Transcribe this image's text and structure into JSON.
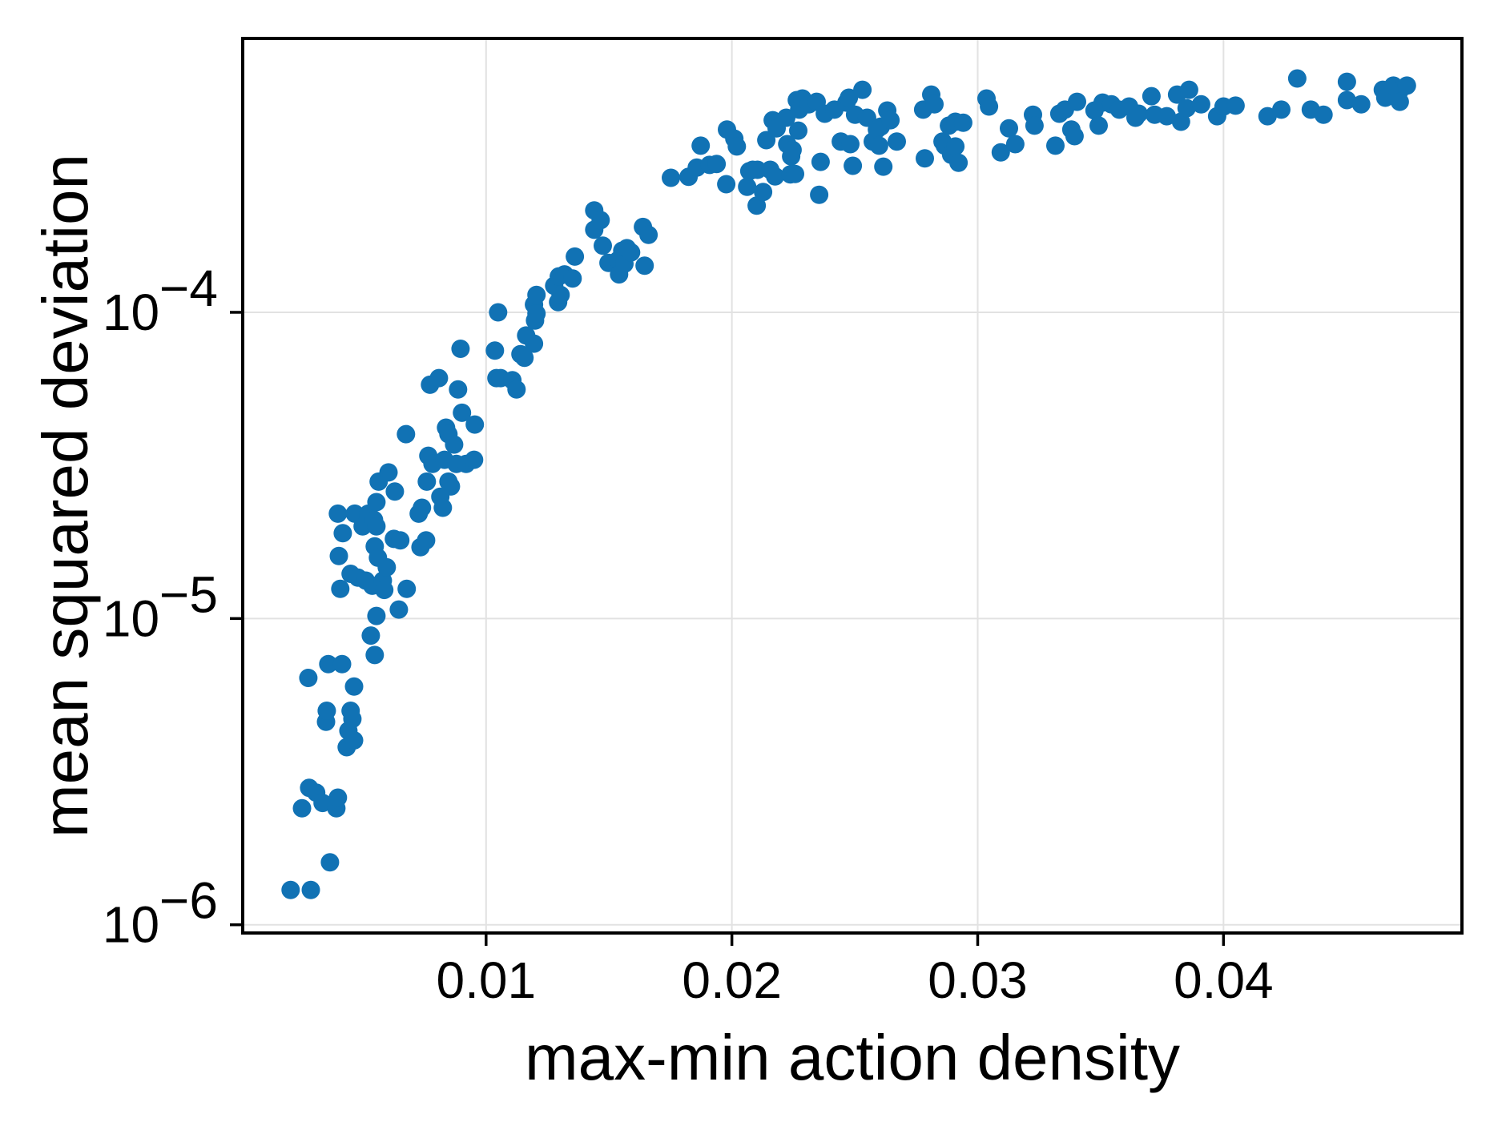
{
  "figure": {
    "background": "#ffffff",
    "spine_color": "#000000",
    "grid_color": "#e2e2e2"
  },
  "chart_data": {
    "type": "scatter",
    "title": "",
    "xlabel": "max-min action density",
    "ylabel": "mean squared deviation",
    "x_scale": "linear",
    "y_scale": "log",
    "xlim": [
      0.0001,
      0.0497
    ],
    "ylim": [
      9.4e-07,
      0.000784
    ],
    "grid": true,
    "legend": "none",
    "marker": {
      "color": "#1172b4",
      "radius_px": 11.5
    },
    "xticks": [
      {
        "value": 0.01,
        "label": "0.01"
      },
      {
        "value": 0.02,
        "label": "0.02"
      },
      {
        "value": 0.03,
        "label": "0.03"
      },
      {
        "value": 0.04,
        "label": "0.04"
      }
    ],
    "yticks": [
      {
        "value": 0.0001,
        "base": "10",
        "exp": "−4"
      },
      {
        "value": 1e-05,
        "base": "10",
        "exp": "−5"
      },
      {
        "value": 1e-06,
        "base": "10",
        "exp": "−6"
      }
    ],
    "points": [
      [
        0.00205,
        1.3e-06
      ],
      [
        0.00251,
        2.4e-06
      ],
      [
        0.00277,
        6.4e-06
      ],
      [
        0.0028,
        2.8e-06
      ],
      [
        0.00287,
        1.3e-06
      ],
      [
        0.00309,
        2.7e-06
      ],
      [
        0.00335,
        2.5e-06
      ],
      [
        0.00349,
        4.6e-06
      ],
      [
        0.00352,
        5e-06
      ],
      [
        0.00358,
        7.1e-06
      ],
      [
        0.00365,
        1.6e-06
      ],
      [
        0.00391,
        2.4e-06
      ],
      [
        0.00397,
        2.6e-06
      ],
      [
        0.00397,
        2.2e-05
      ],
      [
        0.00401,
        1.6e-05
      ],
      [
        0.00407,
        1.25e-05
      ],
      [
        0.00414,
        7.1e-06
      ],
      [
        0.00417,
        1.9e-05
      ],
      [
        0.00433,
        3.8e-06
      ],
      [
        0.0044,
        4.3e-06
      ],
      [
        0.00449,
        1.4e-05
      ],
      [
        0.00449,
        5e-06
      ],
      [
        0.00456,
        4.7e-06
      ],
      [
        0.00463,
        6e-06
      ],
      [
        0.00463,
        4e-06
      ],
      [
        0.00466,
        2.2e-05
      ],
      [
        0.00479,
        1.36e-05
      ],
      [
        0.00498,
        2e-05
      ],
      [
        0.00511,
        1.33e-05
      ],
      [
        0.00521,
        2.2e-05
      ],
      [
        0.00531,
        8.8e-06
      ],
      [
        0.00537,
        1.28e-05
      ],
      [
        0.00544,
        2.1e-05
      ],
      [
        0.00547,
        1.72e-05
      ],
      [
        0.00547,
        7.6e-06
      ],
      [
        0.00554,
        2.4e-05
      ],
      [
        0.00554,
        2e-05
      ],
      [
        0.00554,
        1.02e-05
      ],
      [
        0.0056,
        1.58e-05
      ],
      [
        0.00563,
        2.8e-05
      ],
      [
        0.0058,
        1.33e-05
      ],
      [
        0.00586,
        1.24e-05
      ],
      [
        0.00596,
        1.47e-05
      ],
      [
        0.00603,
        3e-05
      ],
      [
        0.00625,
        1.82e-05
      ],
      [
        0.00629,
        2.6e-05
      ],
      [
        0.00645,
        1.07e-05
      ],
      [
        0.00651,
        1.8e-05
      ],
      [
        0.00674,
        4e-05
      ],
      [
        0.00677,
        1.25e-05
      ],
      [
        0.00726,
        2.2e-05
      ],
      [
        0.00733,
        1.71e-05
      ],
      [
        0.00739,
        2.3e-05
      ],
      [
        0.00756,
        1.8e-05
      ],
      [
        0.00759,
        2.8e-05
      ],
      [
        0.00765,
        3.4e-05
      ],
      [
        0.00772,
        5.8e-05
      ],
      [
        0.00782,
        3.2e-05
      ],
      [
        0.00808,
        6.1e-05
      ],
      [
        0.00814,
        2.5e-05
      ],
      [
        0.00824,
        2.3e-05
      ],
      [
        0.00831,
        3.3e-05
      ],
      [
        0.00837,
        4.2e-05
      ],
      [
        0.00847,
        4e-05
      ],
      [
        0.00847,
        2.8e-05
      ],
      [
        0.00857,
        2.7e-05
      ],
      [
        0.0087,
        3.7e-05
      ],
      [
        0.00879,
        3.2e-05
      ],
      [
        0.00886,
        5.6e-05
      ],
      [
        0.00896,
        7.6e-05
      ],
      [
        0.00902,
        4.7e-05
      ],
      [
        0.00919,
        3.2e-05
      ],
      [
        0.00951,
        3.3e-05
      ],
      [
        0.00954,
        4.3e-05
      ],
      [
        0.01036,
        7.5e-05
      ],
      [
        0.01042,
        6.1e-05
      ],
      [
        0.01049,
        0.0001
      ],
      [
        0.01059,
        6.1e-05
      ],
      [
        0.01107,
        6e-05
      ],
      [
        0.01124,
        5.6e-05
      ],
      [
        0.0114,
        7.3e-05
      ],
      [
        0.01156,
        7.1e-05
      ],
      [
        0.01163,
        8.4e-05
      ],
      [
        0.01195,
        0.000106
      ],
      [
        0.01195,
        7.9e-05
      ],
      [
        0.01199,
        9.4e-05
      ],
      [
        0.01205,
        0.000114
      ],
      [
        0.01205,
        9.9e-05
      ],
      [
        0.01277,
        0.000122
      ],
      [
        0.01293,
        0.000108
      ],
      [
        0.01296,
        0.000131
      ],
      [
        0.01303,
        0.000114
      ],
      [
        0.01319,
        0.000133
      ],
      [
        0.01352,
        0.000129
      ],
      [
        0.01361,
        0.000152
      ],
      [
        0.0144,
        0.000215
      ],
      [
        0.0144,
        0.000186
      ],
      [
        0.01466,
        0.0002
      ],
      [
        0.01475,
        0.000165
      ],
      [
        0.01498,
        0.000145
      ],
      [
        0.01537,
        0.000148
      ],
      [
        0.01541,
        0.000133
      ],
      [
        0.01554,
        0.000159
      ],
      [
        0.01563,
        0.000144
      ],
      [
        0.01573,
        0.000162
      ],
      [
        0.0159,
        0.000157
      ],
      [
        0.01638,
        0.00019
      ],
      [
        0.01645,
        0.000142
      ],
      [
        0.01661,
        0.000179
      ],
      [
        0.01752,
        0.000275
      ],
      [
        0.01824,
        0.000277
      ],
      [
        0.01857,
        0.000297
      ],
      [
        0.01873,
        0.00035
      ],
      [
        0.01909,
        0.000303
      ],
      [
        0.01938,
        0.000305
      ],
      [
        0.01977,
        0.000262
      ],
      [
        0.0198,
        0.000395
      ],
      [
        0.0201,
        0.000369
      ],
      [
        0.0202,
        0.000348
      ],
      [
        0.02062,
        0.000257
      ],
      [
        0.02071,
        0.000289
      ],
      [
        0.02085,
        0.000292
      ],
      [
        0.02101,
        0.000223
      ],
      [
        0.02104,
        0.000292
      ],
      [
        0.02127,
        0.000247
      ],
      [
        0.0214,
        0.000365
      ],
      [
        0.02156,
        0.000292
      ],
      [
        0.02166,
        0.000424
      ],
      [
        0.02176,
        0.000278
      ],
      [
        0.02182,
        0.000399
      ],
      [
        0.02221,
        0.000432
      ],
      [
        0.02225,
        0.000354
      ],
      [
        0.02238,
        0.000282
      ],
      [
        0.02241,
        0.000323
      ],
      [
        0.02247,
        0.000339
      ],
      [
        0.02257,
        0.000283
      ],
      [
        0.02264,
        0.000493
      ],
      [
        0.0227,
        0.000392
      ],
      [
        0.02274,
        0.000459
      ],
      [
        0.02287,
        0.000499
      ],
      [
        0.02313,
        0.000478
      ],
      [
        0.02345,
        0.000487
      ],
      [
        0.02355,
        0.000242
      ],
      [
        0.02361,
        0.00031
      ],
      [
        0.02378,
        0.000445
      ],
      [
        0.02417,
        0.000459
      ],
      [
        0.02443,
        0.000361
      ],
      [
        0.02466,
        0.000484
      ],
      [
        0.02476,
        0.000502
      ],
      [
        0.02482,
        0.000354
      ],
      [
        0.02492,
        0.000301
      ],
      [
        0.02501,
        0.000442
      ],
      [
        0.02531,
        0.000533
      ],
      [
        0.0255,
        0.000432
      ],
      [
        0.02573,
        0.000361
      ],
      [
        0.0259,
        0.000395
      ],
      [
        0.02599,
        0.00035
      ],
      [
        0.02606,
        0.000404
      ],
      [
        0.02616,
        0.000299
      ],
      [
        0.02632,
        0.000456
      ],
      [
        0.02645,
        0.000424
      ],
      [
        0.02671,
        0.000361
      ],
      [
        0.02778,
        0.000459
      ],
      [
        0.02785,
        0.000318
      ],
      [
        0.02811,
        0.000514
      ],
      [
        0.02824,
        0.000478
      ],
      [
        0.02857,
        0.000361
      ],
      [
        0.02866,
        0.00035
      ],
      [
        0.02883,
        0.000407
      ],
      [
        0.02892,
        0.000327
      ],
      [
        0.02909,
        0.000419
      ],
      [
        0.02909,
        0.000348
      ],
      [
        0.02922,
        0.000308
      ],
      [
        0.02941,
        0.000416
      ],
      [
        0.03036,
        0.000499
      ],
      [
        0.03046,
        0.00047
      ],
      [
        0.03094,
        0.000333
      ],
      [
        0.03127,
        0.000399
      ],
      [
        0.03153,
        0.000354
      ],
      [
        0.03225,
        0.000442
      ],
      [
        0.03231,
        0.000407
      ],
      [
        0.03316,
        0.00035
      ],
      [
        0.03332,
        0.000445
      ],
      [
        0.03355,
        0.000459
      ],
      [
        0.03381,
        0.000395
      ],
      [
        0.03394,
        0.000376
      ],
      [
        0.03404,
        0.000487
      ],
      [
        0.03475,
        0.000456
      ],
      [
        0.03492,
        0.000407
      ],
      [
        0.03508,
        0.000484
      ],
      [
        0.03544,
        0.000478
      ],
      [
        0.03576,
        0.000459
      ],
      [
        0.03616,
        0.00047
      ],
      [
        0.03642,
        0.000432
      ],
      [
        0.03655,
        0.000445
      ],
      [
        0.03707,
        0.000508
      ],
      [
        0.0372,
        0.000442
      ],
      [
        0.03769,
        0.000437
      ],
      [
        0.03811,
        0.000514
      ],
      [
        0.03827,
        0.000419
      ],
      [
        0.0385,
        0.000464
      ],
      [
        0.0386,
        0.000533
      ],
      [
        0.03909,
        0.000478
      ],
      [
        0.03974,
        0.000437
      ],
      [
        0.04,
        0.00047
      ],
      [
        0.04049,
        0.000473
      ],
      [
        0.04179,
        0.000437
      ],
      [
        0.04235,
        0.000459
      ],
      [
        0.043,
        0.00058
      ],
      [
        0.04355,
        0.000459
      ],
      [
        0.04407,
        0.000442
      ],
      [
        0.04502,
        0.000566
      ],
      [
        0.04502,
        0.000493
      ],
      [
        0.0456,
        0.000478
      ],
      [
        0.04648,
        0.000533
      ],
      [
        0.04658,
        0.000502
      ],
      [
        0.04691,
        0.00055
      ],
      [
        0.04717,
        0.00053
      ],
      [
        0.04717,
        0.000487
      ],
      [
        0.04746,
        0.00055
      ]
    ]
  }
}
